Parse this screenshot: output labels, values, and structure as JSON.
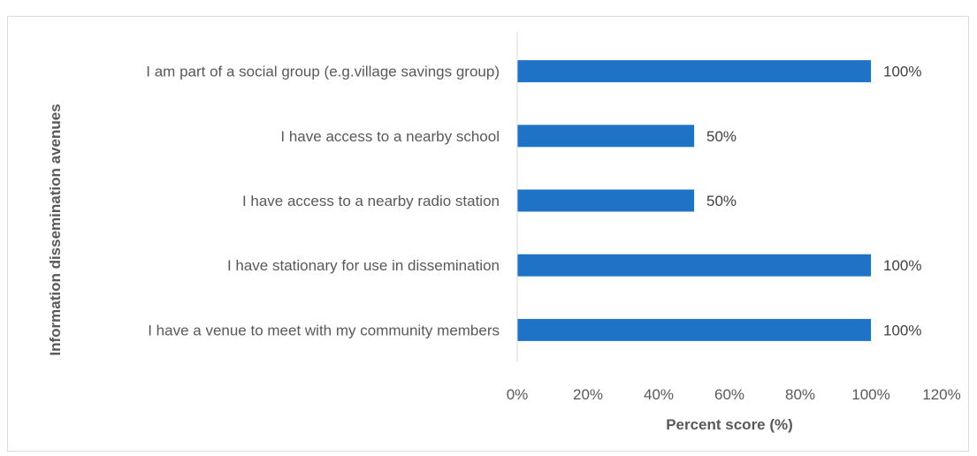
{
  "chart_data": {
    "type": "bar",
    "orientation": "horizontal",
    "categories": [
      "I am part of a social group (e.g.village savings group)",
      "I have access to a nearby school",
      "I have access to a nearby radio station",
      "I have stationary for use in dissemination",
      "I have a venue to meet with my community members"
    ],
    "values": [
      100,
      50,
      50,
      100,
      100
    ],
    "data_labels": [
      "100%",
      "50%",
      "50%",
      "100%",
      "100%"
    ],
    "xlabel": "Percent score (%)",
    "ylabel": "Information dissemination avenues",
    "xlim": [
      0,
      120
    ],
    "x_ticks": [
      "0%",
      "20%",
      "40%",
      "60%",
      "80%",
      "100%",
      "120%"
    ],
    "bar_color": "#1f73c6",
    "grid": false,
    "legend": "none"
  }
}
